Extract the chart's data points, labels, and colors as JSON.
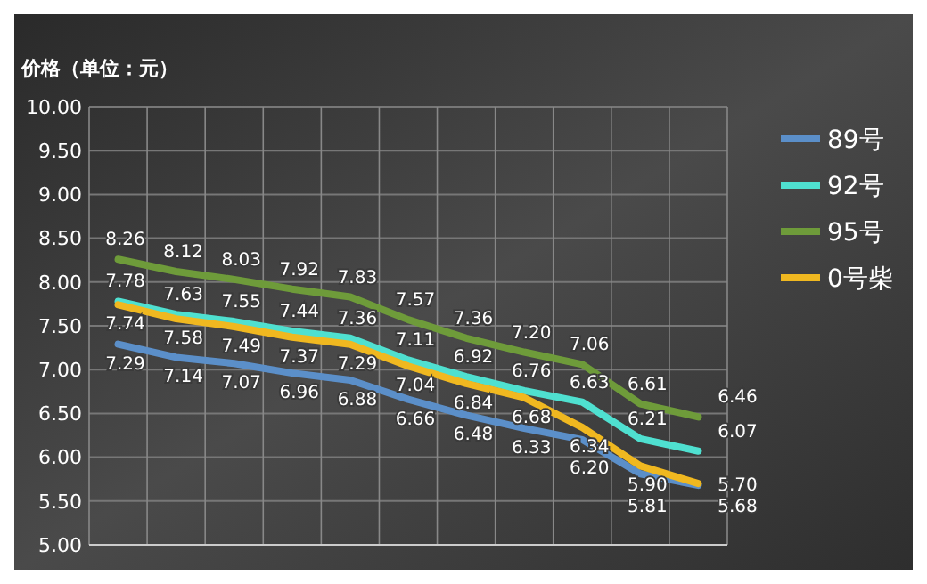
{
  "chart_data": {
    "type": "line",
    "ylabel": "价格（单位：元）",
    "categories": [
      null,
      null,
      null,
      null,
      null,
      null,
      null,
      null,
      null,
      null,
      null
    ],
    "ylim": [
      5,
      10
    ],
    "yticks": [
      {
        "value": 5,
        "label": "5.00"
      },
      {
        "value": 5.5,
        "label": "5.50"
      },
      {
        "value": 6,
        "label": "6.00"
      },
      {
        "value": 6.5,
        "label": "6.50"
      },
      {
        "value": 7,
        "label": "7.00"
      },
      {
        "value": 7.5,
        "label": "7.50"
      },
      {
        "value": 8,
        "label": "8.00"
      },
      {
        "value": 8.5,
        "label": "8.50"
      },
      {
        "value": 9,
        "label": "9.00"
      },
      {
        "value": 9.5,
        "label": "9.50"
      },
      {
        "value": 10,
        "label": "10.00"
      }
    ],
    "series": [
      {
        "name": "89号",
        "color": "#5b8fc9",
        "values": [
          7.29,
          7.14,
          7.07,
          6.96,
          6.88,
          6.66,
          6.48,
          6.33,
          6.2,
          5.81,
          5.68
        ],
        "value_labels": [
          "7.29",
          "7.14",
          "7.07",
          "6.96",
          "6.88",
          "6.66",
          "6.48",
          "6.33",
          "6.20",
          "5.81",
          "5.68"
        ]
      },
      {
        "name": "92号",
        "color": "#4fe0d0",
        "values": [
          7.78,
          7.63,
          7.55,
          7.44,
          7.36,
          7.11,
          6.92,
          6.76,
          6.63,
          6.21,
          6.07
        ],
        "value_labels": [
          "7.78",
          "7.63",
          "7.55",
          "7.44",
          "7.36",
          "7.11",
          "6.92",
          "6.76",
          "6.63",
          "6.21",
          "6.07"
        ]
      },
      {
        "name": "95号",
        "color": "#6e9b3a",
        "values": [
          8.26,
          8.12,
          8.03,
          7.92,
          7.83,
          7.57,
          7.36,
          7.2,
          7.06,
          6.61,
          6.46
        ],
        "value_labels": [
          "8.26",
          "8.12",
          "8.03",
          "7.92",
          "7.83",
          "7.57",
          "7.36",
          "7.20",
          "7.06",
          "6.61",
          "6.46"
        ]
      },
      {
        "name": "0号柴",
        "color": "#f0b820",
        "values": [
          7.74,
          7.58,
          7.49,
          7.37,
          7.29,
          7.04,
          6.84,
          6.68,
          6.34,
          5.9,
          5.7
        ],
        "value_labels": [
          "7.74",
          "7.58",
          "7.49",
          "7.37",
          "7.29",
          "7.04",
          "6.84",
          "6.68",
          "6.34",
          "5.90",
          "5.70"
        ]
      }
    ],
    "grid": true,
    "legend": "right",
    "marker": "none",
    "line_style": "solid"
  }
}
